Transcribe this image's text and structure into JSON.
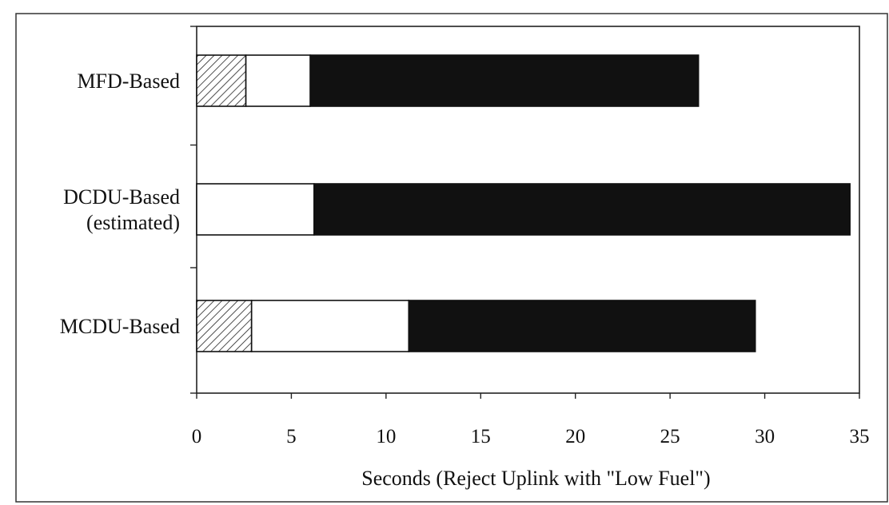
{
  "chart_data": {
    "type": "bar",
    "orientation": "horizontal",
    "stacked": true,
    "categories": [
      [
        "MFD-Based"
      ],
      [
        "DCDU-Based",
        "(estimated)"
      ],
      [
        "MCDU-Based"
      ]
    ],
    "series": [
      {
        "fill": "hatched",
        "color": "#ffffff",
        "values": [
          2.6,
          0,
          2.9
        ]
      },
      {
        "fill": "solid",
        "color": "#ffffff",
        "values": [
          3.4,
          6.2,
          8.3
        ]
      },
      {
        "fill": "solid",
        "color": "#111111",
        "values": [
          20.5,
          28.3,
          18.3
        ]
      }
    ],
    "xlabel": "Seconds (Reject Uplink with \"Low Fuel\")",
    "xlim": [
      0,
      35
    ],
    "xticks": [
      0,
      5,
      10,
      15,
      20,
      25,
      30,
      35
    ],
    "grid": false,
    "legend": "none"
  }
}
